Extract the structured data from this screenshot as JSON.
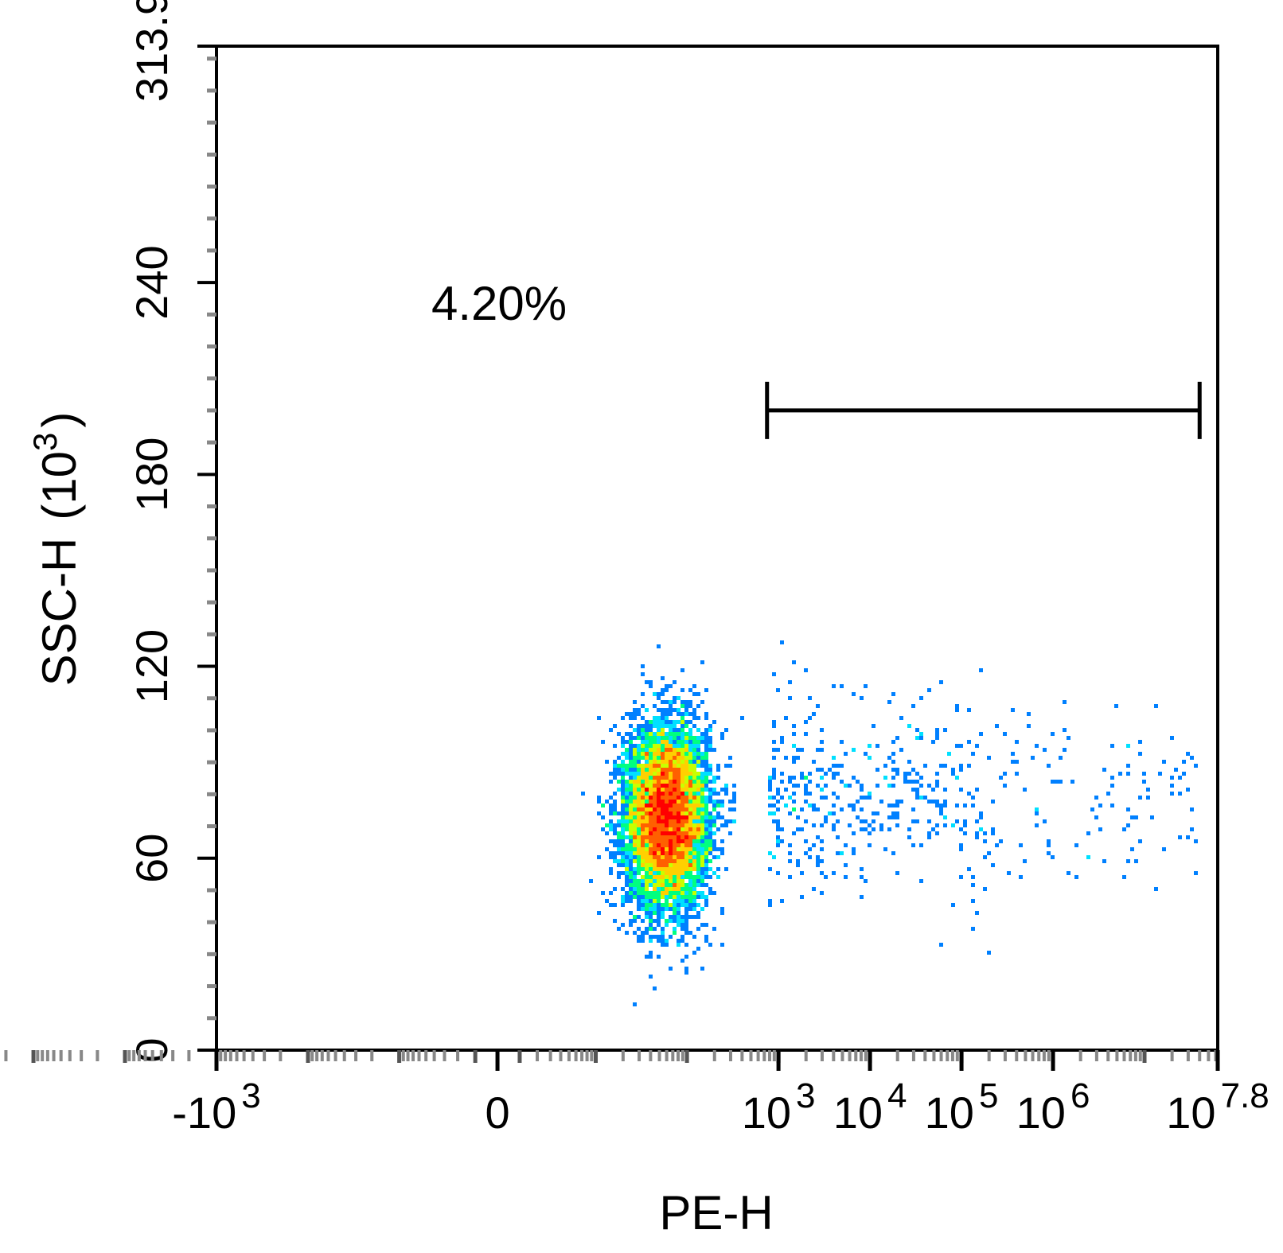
{
  "chart_data": {
    "type": "scatter",
    "style": "flow-cytometry density dot plot",
    "xlabel": "PE-H",
    "ylabel": "SSC-H",
    "ylabel_unit": "(10",
    "ylabel_unit_exp": "3",
    "ylabel_unit_close": ")",
    "x_scale": "biexponential (log with linear region around 0)",
    "x_range": [
      -1000,
      63095734
    ],
    "y_range": [
      0,
      313.9
    ],
    "x_ticks": [
      {
        "value": -1000,
        "base": "-10",
        "exp": "3"
      },
      {
        "value": 0,
        "base": "0",
        "exp": ""
      },
      {
        "value": 1000,
        "base": "10",
        "exp": "3"
      },
      {
        "value": 10000,
        "base": "10",
        "exp": "4"
      },
      {
        "value": 100000,
        "base": "10",
        "exp": "5"
      },
      {
        "value": 1000000,
        "base": "10",
        "exp": "6"
      },
      {
        "value": 63095734,
        "base": "10",
        "exp": "7.8"
      }
    ],
    "y_ticks": [
      {
        "value": 0,
        "label": "0"
      },
      {
        "value": 60,
        "label": "60"
      },
      {
        "value": 120,
        "label": "120"
      },
      {
        "value": 180,
        "label": "180"
      },
      {
        "value": 240,
        "label": "240"
      },
      {
        "value": 313.9,
        "label": "313.9"
      }
    ],
    "gate": {
      "x_start": 750,
      "x_end": 40000000,
      "y": 200,
      "label": "4.20%"
    },
    "populations": [
      {
        "desc": "main negative cluster",
        "x_center": 60,
        "y_mean": 73,
        "y_sd": 14,
        "count": 7000
      },
      {
        "desc": "positive tail",
        "x_min": 800,
        "x_max": 40000000,
        "y_mean": 80,
        "y_sd": 15,
        "count": 520
      }
    ],
    "grid": false,
    "colormap": [
      "#0000ff",
      "#0080ff",
      "#00e0ff",
      "#00ff80",
      "#c8ff00",
      "#ffd000",
      "#ff6000",
      "#ff0000"
    ]
  }
}
